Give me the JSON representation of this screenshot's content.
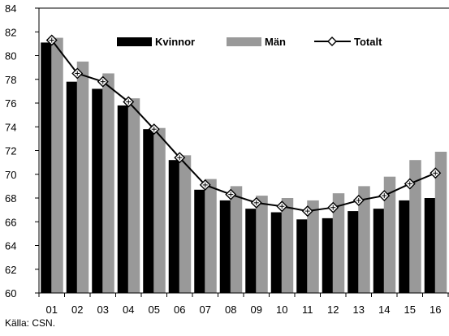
{
  "chart_data": {
    "type": "bar",
    "categories": [
      "01",
      "02",
      "03",
      "04",
      "05",
      "06",
      "07",
      "08",
      "09",
      "10",
      "11",
      "12",
      "13",
      "14",
      "15",
      "16"
    ],
    "series": [
      {
        "name": "Kvinnor",
        "kind": "bar",
        "color": "#000000",
        "values": [
          81.1,
          77.8,
          77.2,
          75.8,
          73.8,
          71.2,
          68.7,
          67.8,
          67.1,
          66.8,
          66.2,
          66.3,
          66.9,
          67.1,
          67.8,
          68.0
        ]
      },
      {
        "name": "Män",
        "kind": "bar",
        "color": "#999999",
        "values": [
          81.5,
          79.5,
          78.5,
          76.4,
          73.9,
          71.6,
          69.6,
          69.0,
          68.2,
          68.0,
          67.8,
          68.4,
          69.0,
          69.8,
          71.2,
          71.9
        ]
      },
      {
        "name": "Totalt",
        "kind": "line",
        "color": "#000000",
        "values": [
          81.3,
          78.5,
          77.8,
          76.1,
          73.8,
          71.4,
          69.1,
          68.3,
          67.6,
          67.3,
          66.9,
          67.2,
          67.8,
          68.2,
          69.2,
          70.1
        ]
      }
    ],
    "ylim": [
      60,
      84
    ],
    "yticks": [
      "60",
      "62",
      "64",
      "66",
      "68",
      "70",
      "72",
      "74",
      "76",
      "78",
      "80",
      "82",
      "84"
    ],
    "legend_position": "top-center",
    "grid": false,
    "title": "",
    "xlabel": "",
    "ylabel": ""
  },
  "source_note": "Källa: CSN."
}
